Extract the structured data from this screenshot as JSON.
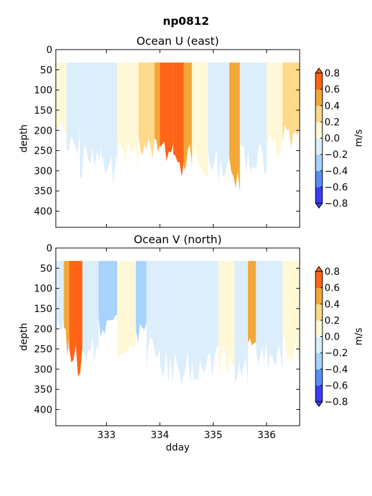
{
  "figure_title": "np0812",
  "colorbar_ticks": [
    "0.8",
    "0.6",
    "0.4",
    "0.2",
    "0.0",
    "−0.2",
    "−0.4",
    "−0.6",
    "−0.8"
  ],
  "colorbar_unit": "m/s",
  "chart_data": [
    {
      "type": "heatmap",
      "title": "Ocean U (east)",
      "ylabel": "depth",
      "xlabel": "",
      "xlim": [
        332.05,
        336.62
      ],
      "ylim": [
        440,
        0
      ],
      "y_ticks": [
        "0",
        "50",
        "100",
        "150",
        "200",
        "250",
        "300",
        "350",
        "400"
      ],
      "x_ticks": [],
      "data_top_depth": 32,
      "levels": [
        -0.8,
        -0.6,
        -0.4,
        -0.2,
        0.0,
        0.2,
        0.4,
        0.6,
        0.8
      ],
      "colors": [
        "#3b3bf5",
        "#5a8ef5",
        "#a8d2ff",
        "#dceefc",
        "#fff8d6",
        "#ffd98a",
        "#f2a838",
        "#ff6417"
      ],
      "segments": [
        {
          "x": [
            332.05,
            332.25
          ],
          "value": 0.1,
          "max_depth": 235
        },
        {
          "x": [
            332.25,
            332.5
          ],
          "value": -0.1,
          "max_depth": 270
        },
        {
          "x": [
            332.5,
            332.9
          ],
          "value": -0.1,
          "max_depth": 320
        },
        {
          "x": [
            332.9,
            333.2
          ],
          "value": -0.1,
          "max_depth": 340
        },
        {
          "x": [
            333.2,
            333.6
          ],
          "value": 0.1,
          "max_depth": 300
        },
        {
          "x": [
            333.6,
            333.9
          ],
          "value": 0.3,
          "max_depth": 280
        },
        {
          "x": [
            333.9,
            334.0
          ],
          "value": 0.5,
          "max_depth": 300
        },
        {
          "x": [
            334.0,
            334.25
          ],
          "value": 0.7,
          "max_depth": 280
        },
        {
          "x": [
            334.25,
            334.45
          ],
          "value": 0.7,
          "max_depth": 330
        },
        {
          "x": [
            334.45,
            334.6
          ],
          "value": 0.5,
          "max_depth": 310
        },
        {
          "x": [
            334.6,
            334.9
          ],
          "value": 0.1,
          "max_depth": 320
        },
        {
          "x": [
            334.9,
            335.3
          ],
          "value": -0.1,
          "max_depth": 340
        },
        {
          "x": [
            335.3,
            335.5
          ],
          "value": 0.5,
          "max_depth": 355
        },
        {
          "x": [
            335.5,
            336.0
          ],
          "value": -0.1,
          "max_depth": 320
        },
        {
          "x": [
            336.0,
            336.3
          ],
          "value": 0.1,
          "max_depth": 280
        },
        {
          "x": [
            336.3,
            336.62
          ],
          "value": 0.3,
          "max_depth": 260
        }
      ]
    },
    {
      "type": "heatmap",
      "title": "Ocean V (north)",
      "ylabel": "depth",
      "xlabel": "dday",
      "xlim": [
        332.05,
        336.62
      ],
      "ylim": [
        440,
        0
      ],
      "y_ticks": [
        "0",
        "50",
        "100",
        "150",
        "200",
        "250",
        "300",
        "350",
        "400"
      ],
      "x_ticks": [
        "333",
        "334",
        "335",
        "336"
      ],
      "data_top_depth": 32,
      "levels": [
        -0.8,
        -0.6,
        -0.4,
        -0.2,
        0.0,
        0.2,
        0.4,
        0.6,
        0.8
      ],
      "colors": [
        "#3b3bf5",
        "#5a8ef5",
        "#a8d2ff",
        "#dceefc",
        "#fff8d6",
        "#ffd98a",
        "#f2a838",
        "#ff6417"
      ],
      "segments": [
        {
          "x": [
            332.05,
            332.2
          ],
          "value": -0.1,
          "max_depth": 240
        },
        {
          "x": [
            332.2,
            332.3
          ],
          "value": 0.5,
          "max_depth": 270
        },
        {
          "x": [
            332.3,
            332.55
          ],
          "value": 0.7,
          "max_depth": 320
        },
        {
          "x": [
            332.55,
            332.85
          ],
          "value": -0.1,
          "max_depth": 300
        },
        {
          "x": [
            332.85,
            333.2
          ],
          "value": -0.3,
          "max_depth": 230
        },
        {
          "x": [
            333.2,
            333.55
          ],
          "value": 0.1,
          "max_depth": 280
        },
        {
          "x": [
            333.55,
            333.75
          ],
          "value": -0.3,
          "max_depth": 240
        },
        {
          "x": [
            333.75,
            334.0
          ],
          "value": -0.1,
          "max_depth": 300
        },
        {
          "x": [
            334.0,
            334.6
          ],
          "value": -0.1,
          "max_depth": 340
        },
        {
          "x": [
            334.6,
            335.1
          ],
          "value": -0.1,
          "max_depth": 330
        },
        {
          "x": [
            335.1,
            335.4
          ],
          "value": 0.1,
          "max_depth": 330
        },
        {
          "x": [
            335.4,
            335.65
          ],
          "value": -0.1,
          "max_depth": 350
        },
        {
          "x": [
            335.65,
            335.8
          ],
          "value": 0.5,
          "max_depth": 260
        },
        {
          "x": [
            335.8,
            336.3
          ],
          "value": -0.1,
          "max_depth": 320
        },
        {
          "x": [
            336.3,
            336.62
          ],
          "value": 0.1,
          "max_depth": 280
        }
      ]
    }
  ]
}
